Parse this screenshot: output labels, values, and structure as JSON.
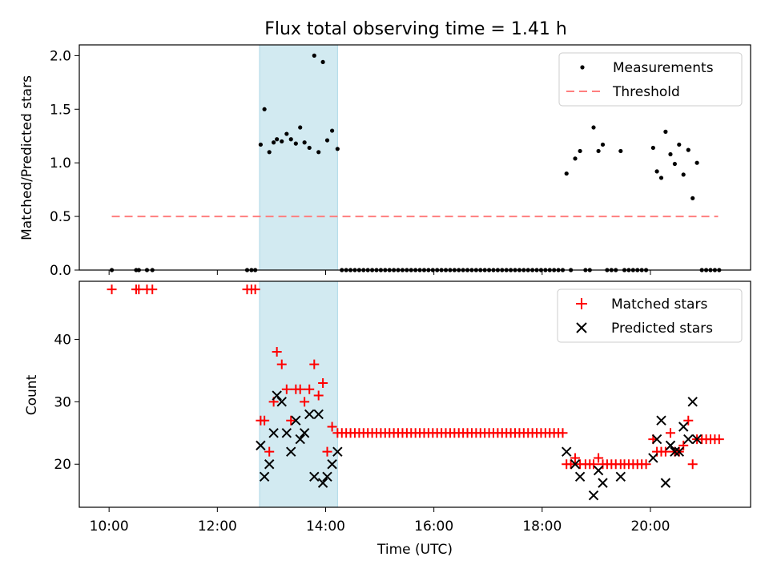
{
  "title": "Flux total observing time = 1.41 h",
  "colors": {
    "measurement": "#000000",
    "threshold": "#ff7f7f",
    "matched": "#ff0000",
    "predicted": "#000000",
    "highlight": "#add8e6"
  },
  "chart_data": [
    {
      "type": "scatter",
      "ylabel": "Matched/Predicted stars",
      "xlabel": "",
      "xlim": [
        9.45,
        21.85
      ],
      "ylim": [
        0,
        2.1
      ],
      "yticks": [
        0.0,
        0.5,
        1.0,
        1.5,
        2.0
      ],
      "ytick_labels": [
        "0.0",
        "0.5",
        "1.0",
        "1.5",
        "2.0"
      ],
      "xticks": [
        10,
        12,
        14,
        16,
        18,
        20
      ],
      "highlight_span": [
        12.78,
        14.22
      ],
      "legend": {
        "position": "top-right",
        "entries": [
          "Measurements",
          "Threshold"
        ]
      },
      "threshold": {
        "name": "Threshold",
        "x": [
          10.05,
          21.25
        ],
        "y": 0.5
      },
      "series": [
        {
          "name": "Measurements",
          "points": [
            [
              10.05,
              0
            ],
            [
              10.5,
              0
            ],
            [
              10.55,
              0
            ],
            [
              10.7,
              0
            ],
            [
              10.8,
              0
            ],
            [
              12.55,
              0
            ],
            [
              12.63,
              0
            ],
            [
              12.7,
              0
            ],
            [
              12.8,
              1.17
            ],
            [
              12.87,
              1.5
            ],
            [
              12.96,
              1.1
            ],
            [
              13.04,
              1.19
            ],
            [
              13.1,
              1.22
            ],
            [
              13.19,
              1.2
            ],
            [
              13.28,
              1.27
            ],
            [
              13.36,
              1.22
            ],
            [
              13.45,
              1.18
            ],
            [
              13.53,
              1.33
            ],
            [
              13.61,
              1.19
            ],
            [
              13.7,
              1.14
            ],
            [
              13.79,
              2.0
            ],
            [
              13.87,
              1.1
            ],
            [
              13.95,
              1.94
            ],
            [
              14.03,
              1.21
            ],
            [
              14.12,
              1.3
            ],
            [
              14.22,
              1.13
            ],
            [
              14.3,
              0
            ],
            [
              14.38,
              0
            ],
            [
              14.46,
              0
            ],
            [
              14.54,
              0
            ],
            [
              14.62,
              0
            ],
            [
              14.7,
              0
            ],
            [
              14.78,
              0
            ],
            [
              14.86,
              0
            ],
            [
              14.94,
              0
            ],
            [
              15.02,
              0
            ],
            [
              15.1,
              0
            ],
            [
              15.18,
              0
            ],
            [
              15.26,
              0
            ],
            [
              15.34,
              0
            ],
            [
              15.42,
              0
            ],
            [
              15.5,
              0
            ],
            [
              15.58,
              0
            ],
            [
              15.66,
              0
            ],
            [
              15.74,
              0
            ],
            [
              15.82,
              0
            ],
            [
              15.9,
              0
            ],
            [
              15.98,
              0
            ],
            [
              16.06,
              0
            ],
            [
              16.14,
              0
            ],
            [
              16.22,
              0
            ],
            [
              16.3,
              0
            ],
            [
              16.38,
              0
            ],
            [
              16.46,
              0
            ],
            [
              16.54,
              0
            ],
            [
              16.62,
              0
            ],
            [
              16.7,
              0
            ],
            [
              16.78,
              0
            ],
            [
              16.86,
              0
            ],
            [
              16.94,
              0
            ],
            [
              17.02,
              0
            ],
            [
              17.1,
              0
            ],
            [
              17.18,
              0
            ],
            [
              17.26,
              0
            ],
            [
              17.34,
              0
            ],
            [
              17.42,
              0
            ],
            [
              17.5,
              0
            ],
            [
              17.58,
              0
            ],
            [
              17.66,
              0
            ],
            [
              17.74,
              0
            ],
            [
              17.82,
              0
            ],
            [
              17.9,
              0
            ],
            [
              17.98,
              0
            ],
            [
              18.06,
              0
            ],
            [
              18.14,
              0
            ],
            [
              18.22,
              0
            ],
            [
              18.3,
              0
            ],
            [
              18.38,
              0
            ],
            [
              18.45,
              0.9
            ],
            [
              18.53,
              0
            ],
            [
              18.61,
              1.04
            ],
            [
              18.7,
              1.11
            ],
            [
              18.8,
              0
            ],
            [
              18.88,
              0
            ],
            [
              18.95,
              1.33
            ],
            [
              19.04,
              1.11
            ],
            [
              19.12,
              1.17
            ],
            [
              19.2,
              0
            ],
            [
              19.28,
              0
            ],
            [
              19.36,
              0
            ],
            [
              19.45,
              1.11
            ],
            [
              19.52,
              0
            ],
            [
              19.6,
              0
            ],
            [
              19.68,
              0
            ],
            [
              19.76,
              0
            ],
            [
              19.84,
              0
            ],
            [
              19.92,
              0
            ],
            [
              20.05,
              1.14
            ],
            [
              20.12,
              0.92
            ],
            [
              20.2,
              0.86
            ],
            [
              20.28,
              1.29
            ],
            [
              20.37,
              1.08
            ],
            [
              20.45,
              0.99
            ],
            [
              20.53,
              1.17
            ],
            [
              20.61,
              0.89
            ],
            [
              20.7,
              1.12
            ],
            [
              20.78,
              0.67
            ],
            [
              20.86,
              1.0
            ],
            [
              20.95,
              0
            ],
            [
              21.03,
              0
            ],
            [
              21.11,
              0
            ],
            [
              21.19,
              0
            ],
            [
              21.27,
              0
            ]
          ]
        }
      ]
    },
    {
      "type": "scatter",
      "ylabel": "Count",
      "xlabel": "Time (UTC)",
      "xlim": [
        9.45,
        21.85
      ],
      "ylim": [
        13.1,
        49.3
      ],
      "yticks": [
        20,
        30,
        40
      ],
      "ytick_labels": [
        "20",
        "30",
        "40"
      ],
      "xticks": [
        10,
        12,
        14,
        16,
        18,
        20
      ],
      "xtick_labels": [
        "10:00",
        "12:00",
        "14:00",
        "16:00",
        "18:00",
        "20:00"
      ],
      "highlight_span": [
        12.78,
        14.22
      ],
      "legend": {
        "position": "top-right",
        "entries": [
          "Matched stars",
          "Predicted stars"
        ]
      },
      "series": [
        {
          "name": "Matched stars",
          "marker": "plus",
          "points": [
            [
              10.05,
              48
            ],
            [
              10.5,
              48
            ],
            [
              10.55,
              48
            ],
            [
              10.7,
              48
            ],
            [
              10.8,
              48
            ],
            [
              12.55,
              48
            ],
            [
              12.63,
              48
            ],
            [
              12.7,
              48
            ],
            [
              12.8,
              27
            ],
            [
              12.87,
              27
            ],
            [
              12.96,
              22
            ],
            [
              13.04,
              30
            ],
            [
              13.1,
              38
            ],
            [
              13.19,
              36
            ],
            [
              13.28,
              32
            ],
            [
              13.36,
              27
            ],
            [
              13.45,
              32
            ],
            [
              13.53,
              32
            ],
            [
              13.61,
              30
            ],
            [
              13.7,
              32
            ],
            [
              13.79,
              36
            ],
            [
              13.87,
              31
            ],
            [
              13.95,
              33
            ],
            [
              14.03,
              22
            ],
            [
              14.12,
              26
            ],
            [
              14.22,
              25
            ],
            [
              14.3,
              25
            ],
            [
              14.38,
              25
            ],
            [
              14.46,
              25
            ],
            [
              14.54,
              25
            ],
            [
              14.62,
              25
            ],
            [
              14.7,
              25
            ],
            [
              14.78,
              25
            ],
            [
              14.86,
              25
            ],
            [
              14.94,
              25
            ],
            [
              15.02,
              25
            ],
            [
              15.1,
              25
            ],
            [
              15.18,
              25
            ],
            [
              15.26,
              25
            ],
            [
              15.34,
              25
            ],
            [
              15.42,
              25
            ],
            [
              15.5,
              25
            ],
            [
              15.58,
              25
            ],
            [
              15.66,
              25
            ],
            [
              15.74,
              25
            ],
            [
              15.82,
              25
            ],
            [
              15.9,
              25
            ],
            [
              15.98,
              25
            ],
            [
              16.06,
              25
            ],
            [
              16.14,
              25
            ],
            [
              16.22,
              25
            ],
            [
              16.3,
              25
            ],
            [
              16.38,
              25
            ],
            [
              16.46,
              25
            ],
            [
              16.54,
              25
            ],
            [
              16.62,
              25
            ],
            [
              16.7,
              25
            ],
            [
              16.78,
              25
            ],
            [
              16.86,
              25
            ],
            [
              16.94,
              25
            ],
            [
              17.02,
              25
            ],
            [
              17.1,
              25
            ],
            [
              17.18,
              25
            ],
            [
              17.26,
              25
            ],
            [
              17.34,
              25
            ],
            [
              17.42,
              25
            ],
            [
              17.5,
              25
            ],
            [
              17.58,
              25
            ],
            [
              17.66,
              25
            ],
            [
              17.74,
              25
            ],
            [
              17.82,
              25
            ],
            [
              17.9,
              25
            ],
            [
              17.98,
              25
            ],
            [
              18.06,
              25
            ],
            [
              18.14,
              25
            ],
            [
              18.22,
              25
            ],
            [
              18.3,
              25
            ],
            [
              18.38,
              25
            ],
            [
              18.45,
              20
            ],
            [
              18.53,
              20
            ],
            [
              18.61,
              21
            ],
            [
              18.7,
              20
            ],
            [
              18.8,
              20
            ],
            [
              18.88,
              20
            ],
            [
              18.95,
              20
            ],
            [
              19.04,
              21
            ],
            [
              19.12,
              20
            ],
            [
              19.2,
              20
            ],
            [
              19.28,
              20
            ],
            [
              19.36,
              20
            ],
            [
              19.45,
              20
            ],
            [
              19.52,
              20
            ],
            [
              19.6,
              20
            ],
            [
              19.68,
              20
            ],
            [
              19.76,
              20
            ],
            [
              19.84,
              20
            ],
            [
              19.92,
              20
            ],
            [
              20.05,
              24
            ],
            [
              20.12,
              22
            ],
            [
              20.2,
              22
            ],
            [
              20.28,
              22
            ],
            [
              20.37,
              25
            ],
            [
              20.45,
              22
            ],
            [
              20.53,
              22
            ],
            [
              20.61,
              23
            ],
            [
              20.7,
              27
            ],
            [
              20.78,
              20
            ],
            [
              20.86,
              24
            ],
            [
              20.95,
              24
            ],
            [
              21.03,
              24
            ],
            [
              21.11,
              24
            ],
            [
              21.19,
              24
            ],
            [
              21.27,
              24
            ]
          ]
        },
        {
          "name": "Predicted stars",
          "marker": "x",
          "points": [
            [
              12.8,
              23
            ],
            [
              12.87,
              18
            ],
            [
              12.96,
              20
            ],
            [
              13.04,
              25
            ],
            [
              13.1,
              31
            ],
            [
              13.19,
              30
            ],
            [
              13.28,
              25
            ],
            [
              13.36,
              22
            ],
            [
              13.45,
              27
            ],
            [
              13.53,
              24
            ],
            [
              13.61,
              25
            ],
            [
              13.7,
              28
            ],
            [
              13.79,
              18
            ],
            [
              13.87,
              28
            ],
            [
              13.95,
              17
            ],
            [
              14.03,
              18
            ],
            [
              14.12,
              20
            ],
            [
              14.22,
              22
            ],
            [
              18.45,
              22
            ],
            [
              18.61,
              20
            ],
            [
              18.7,
              18
            ],
            [
              18.95,
              15
            ],
            [
              19.04,
              19
            ],
            [
              19.12,
              17
            ],
            [
              19.45,
              18
            ],
            [
              20.05,
              21
            ],
            [
              20.12,
              24
            ],
            [
              20.2,
              27
            ],
            [
              20.28,
              17
            ],
            [
              20.37,
              23
            ],
            [
              20.45,
              22
            ],
            [
              20.53,
              22
            ],
            [
              20.61,
              26
            ],
            [
              20.7,
              24
            ],
            [
              20.78,
              30
            ],
            [
              20.86,
              24
            ]
          ]
        }
      ]
    }
  ]
}
